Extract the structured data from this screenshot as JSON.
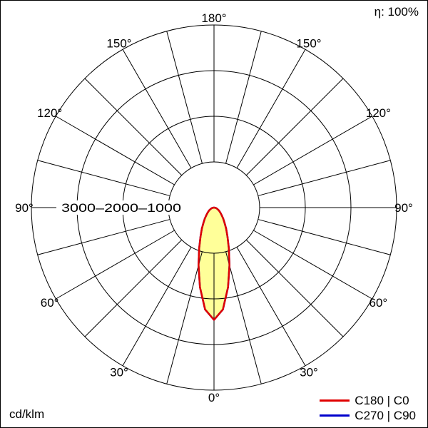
{
  "chart_data": {
    "type": "polar",
    "units": "cd/klm",
    "efficiency": "η: 100%",
    "angle_labels_deg": [
      0,
      30,
      60,
      90,
      120,
      150,
      180
    ],
    "angle_grid_step_deg": 15,
    "radial_ticks": [
      1000,
      2000,
      3000
    ],
    "radial_max": 4000,
    "grid_color": "#000000",
    "background_color": "#ffffff",
    "series": [
      {
        "name": "C180 | C0",
        "color": "#e00000",
        "fill": "#ffff99",
        "points_gamma_intensity": [
          [
            -90,
            0
          ],
          [
            -85,
            15
          ],
          [
            -80,
            30
          ],
          [
            -75,
            50
          ],
          [
            -70,
            70
          ],
          [
            -65,
            90
          ],
          [
            -60,
            120
          ],
          [
            -55,
            150
          ],
          [
            -50,
            190
          ],
          [
            -45,
            240
          ],
          [
            -40,
            310
          ],
          [
            -35,
            400
          ],
          [
            -30,
            530
          ],
          [
            -25,
            700
          ],
          [
            -20,
            950
          ],
          [
            -15,
            1310
          ],
          [
            -10,
            1770
          ],
          [
            -5,
            2240
          ],
          [
            0,
            2460
          ],
          [
            5,
            2240
          ],
          [
            10,
            1770
          ],
          [
            15,
            1310
          ],
          [
            20,
            950
          ],
          [
            25,
            700
          ],
          [
            30,
            530
          ],
          [
            35,
            400
          ],
          [
            40,
            310
          ],
          [
            45,
            240
          ],
          [
            50,
            190
          ],
          [
            55,
            150
          ],
          [
            60,
            120
          ],
          [
            65,
            90
          ],
          [
            70,
            70
          ],
          [
            75,
            50
          ],
          [
            80,
            30
          ],
          [
            85,
            15
          ],
          [
            90,
            0
          ]
        ]
      },
      {
        "name": "C270 | C90",
        "color": "#0000cc",
        "fill": "none",
        "points_gamma_intensity": [
          [
            -90,
            0
          ],
          [
            -85,
            15
          ],
          [
            -80,
            30
          ],
          [
            -75,
            50
          ],
          [
            -70,
            70
          ],
          [
            -65,
            90
          ],
          [
            -60,
            120
          ],
          [
            -55,
            150
          ],
          [
            -50,
            190
          ],
          [
            -45,
            240
          ],
          [
            -40,
            310
          ],
          [
            -35,
            400
          ],
          [
            -30,
            530
          ],
          [
            -25,
            700
          ],
          [
            -20,
            950
          ],
          [
            -15,
            1310
          ],
          [
            -10,
            1770
          ],
          [
            -5,
            2240
          ],
          [
            0,
            2460
          ],
          [
            5,
            2240
          ],
          [
            10,
            1770
          ],
          [
            15,
            1310
          ],
          [
            20,
            950
          ],
          [
            25,
            700
          ],
          [
            30,
            530
          ],
          [
            35,
            400
          ],
          [
            40,
            310
          ],
          [
            45,
            240
          ],
          [
            50,
            190
          ],
          [
            55,
            150
          ],
          [
            60,
            120
          ],
          [
            65,
            90
          ],
          [
            70,
            70
          ],
          [
            75,
            50
          ],
          [
            80,
            30
          ],
          [
            85,
            15
          ],
          [
            90,
            0
          ]
        ]
      }
    ]
  }
}
